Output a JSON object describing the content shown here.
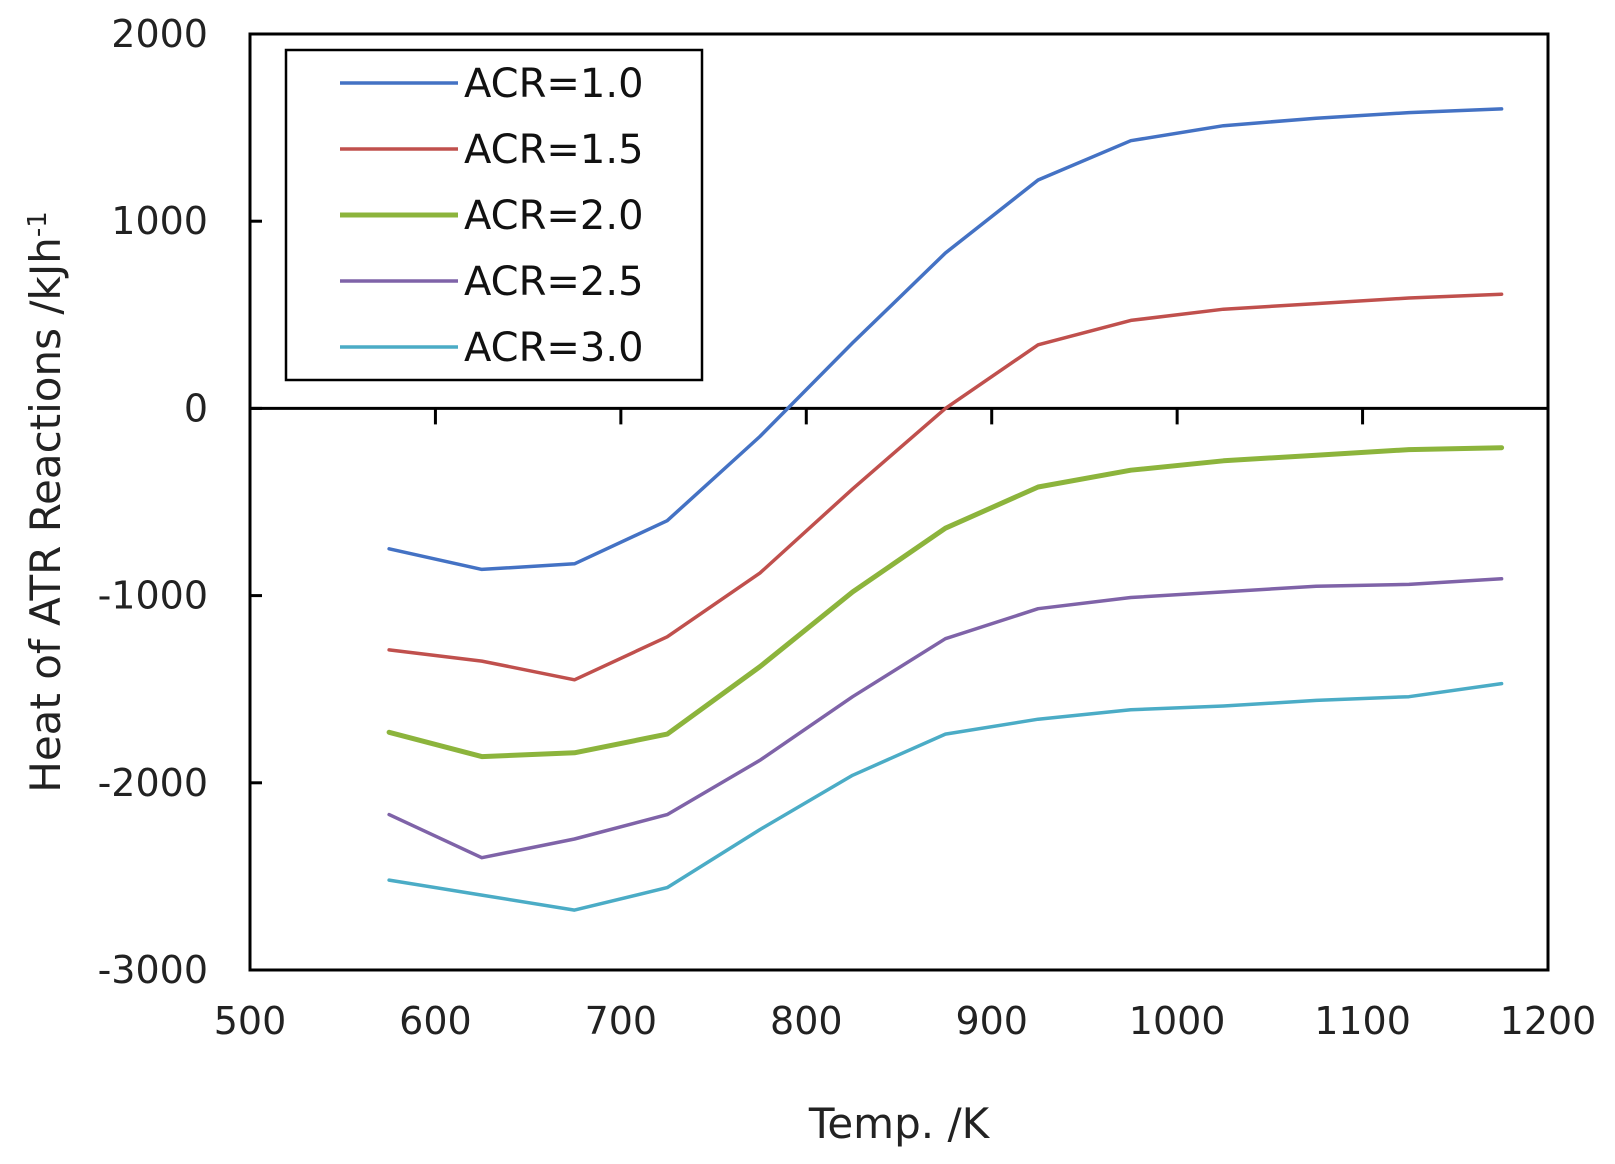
{
  "chart_data": {
    "type": "line",
    "title": "",
    "xlabel": "Temp. /K",
    "ylabel": "Heat of ATR Reactions  /kJh",
    "ylabel_superscript": "-1",
    "xlim": [
      500,
      1200
    ],
    "ylim": [
      -3000,
      2000
    ],
    "xticks": [
      500,
      600,
      700,
      800,
      900,
      1000,
      1100,
      1200
    ],
    "yticks": [
      2000,
      1000,
      0,
      -1000,
      -2000,
      -3000
    ],
    "grid": false,
    "legend_position": "top-left",
    "x": [
      575,
      625,
      675,
      725,
      775,
      825,
      875,
      925,
      975,
      1025,
      1075,
      1125,
      1175
    ],
    "series": [
      {
        "name": "ACR=1.0",
        "color": "#4472c4",
        "values": [
          -750,
          -860,
          -830,
          -600,
          -150,
          350,
          830,
          1220,
          1430,
          1510,
          1550,
          1580,
          1600
        ]
      },
      {
        "name": "ACR=1.5",
        "color": "#c0504d",
        "values": [
          -1290,
          -1350,
          -1450,
          -1220,
          -880,
          -430,
          0,
          340,
          470,
          530,
          560,
          590,
          610
        ]
      },
      {
        "name": "ACR=2.0",
        "color": "#8cb43c",
        "values": [
          -1730,
          -1860,
          -1840,
          -1740,
          -1380,
          -980,
          -640,
          -420,
          -330,
          -280,
          -250,
          -220,
          -210
        ]
      },
      {
        "name": "ACR=2.5",
        "color": "#7f63a8",
        "values": [
          -2170,
          -2400,
          -2300,
          -2170,
          -1880,
          -1540,
          -1230,
          -1070,
          -1010,
          -980,
          -950,
          -940,
          -910
        ]
      },
      {
        "name": "ACR=3.0",
        "color": "#4bacc6",
        "values": [
          -2520,
          -2600,
          -2680,
          -2560,
          -2250,
          -1960,
          -1740,
          -1660,
          -1610,
          -1590,
          -1560,
          -1540,
          -1470
        ]
      }
    ]
  }
}
